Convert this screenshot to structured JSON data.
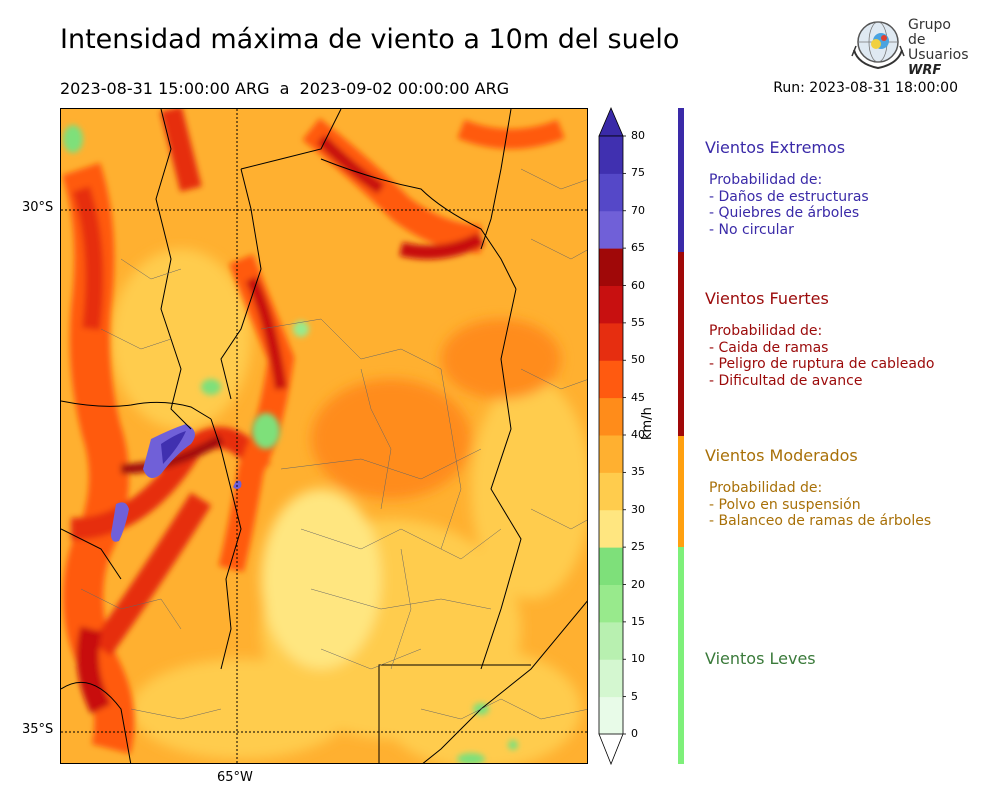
{
  "header": {
    "title": "Intensidad máxima de viento a 10m del suelo",
    "period": "2023-08-31 15:00:00 ARG  a  2023-09-02 00:00:00 ARG",
    "run": "Run: 2023-08-31 18:00:00"
  },
  "logo": {
    "line1": "Grupo de",
    "line2": "Usuarios",
    "line3": "WRF"
  },
  "map": {
    "lat_labels": [
      "30°S",
      "35°S"
    ],
    "lon_labels": [
      "65°W"
    ]
  },
  "colorbar": {
    "unit": "km/h",
    "ticks": [
      "0",
      "5",
      "10",
      "15",
      "20",
      "25",
      "30",
      "35",
      "40",
      "45",
      "50",
      "55",
      "60",
      "65",
      "70",
      "75",
      "80"
    ],
    "colors": [
      "#e8fbe8",
      "#d4f7d0",
      "#b8f0b0",
      "#98ea8c",
      "#7ee07a",
      "#ffe680",
      "#ffcc4d",
      "#ffb030",
      "#ff8c1a",
      "#ff5a10",
      "#e62e10",
      "#c81010",
      "#a00808",
      "#7060d8",
      "#5548c8",
      "#4030b0",
      "#3a2aa8"
    ]
  },
  "categories": [
    {
      "title": "Vientos Extremos",
      "color": "#3a2aa8",
      "lines": [
        "Probabilidad de:",
        "- Daños de estructuras",
        "- Quiebres de árboles",
        "- No circular"
      ]
    },
    {
      "title": "Vientos Fuertes",
      "color": "#9b0a0a",
      "lines": [
        "Probabilidad de:",
        "- Caida de ramas",
        "- Peligro de ruptura de cableado",
        "- Dificultad de avance"
      ]
    },
    {
      "title": "Vientos Moderados",
      "color": "#a87008",
      "lines": [
        "Probabilidad de:",
        "- Polvo en suspensión",
        "- Balanceo de ramas de árboles"
      ]
    },
    {
      "title": "Vientos Leves",
      "color": "#3a7a3a",
      "lines": []
    }
  ]
}
